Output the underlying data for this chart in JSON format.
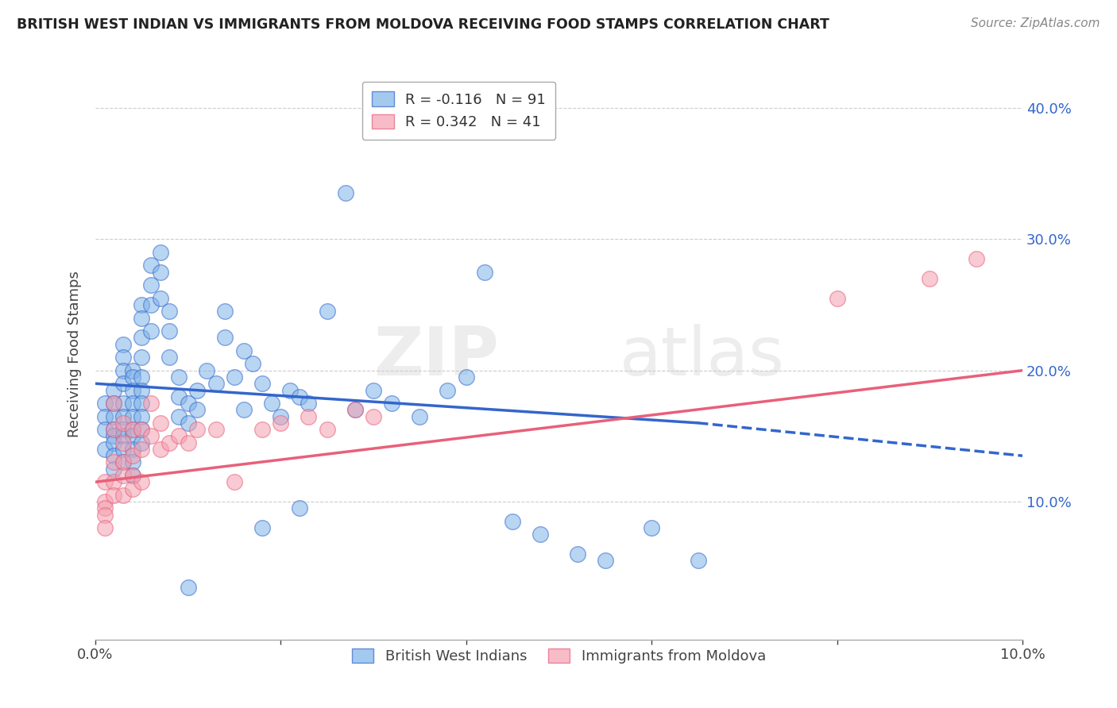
{
  "title": "BRITISH WEST INDIAN VS IMMIGRANTS FROM MOLDOVA RECEIVING FOOD STAMPS CORRELATION CHART",
  "source": "Source: ZipAtlas.com",
  "ylabel": "Receiving Food Stamps",
  "ytick_labels": [
    "10.0%",
    "20.0%",
    "30.0%",
    "40.0%"
  ],
  "ytick_values": [
    0.1,
    0.2,
    0.3,
    0.4
  ],
  "xlim": [
    0.0,
    0.1
  ],
  "ylim": [
    -0.005,
    0.43
  ],
  "legend_blue_r": "-0.116",
  "legend_blue_n": "91",
  "legend_pink_r": "0.342",
  "legend_pink_n": "41",
  "blue_color": "#7EB3E8",
  "pink_color": "#F4A0B0",
  "blue_line_color": "#3366CC",
  "pink_line_color": "#E8607A",
  "blue_line_y0": 0.19,
  "blue_line_y1_solid": 0.16,
  "blue_line_x_solid_end": 0.065,
  "blue_line_y1_dashed": 0.135,
  "pink_line_y0": 0.115,
  "pink_line_y1": 0.2,
  "watermark_text": "ZIPatlas",
  "blue_scatter_x": [
    0.001,
    0.001,
    0.001,
    0.001,
    0.002,
    0.002,
    0.002,
    0.002,
    0.002,
    0.002,
    0.002,
    0.002,
    0.003,
    0.003,
    0.003,
    0.003,
    0.003,
    0.003,
    0.003,
    0.003,
    0.003,
    0.003,
    0.004,
    0.004,
    0.004,
    0.004,
    0.004,
    0.004,
    0.004,
    0.004,
    0.004,
    0.004,
    0.005,
    0.005,
    0.005,
    0.005,
    0.005,
    0.005,
    0.005,
    0.005,
    0.005,
    0.005,
    0.006,
    0.006,
    0.006,
    0.006,
    0.007,
    0.007,
    0.007,
    0.008,
    0.008,
    0.008,
    0.009,
    0.009,
    0.009,
    0.01,
    0.01,
    0.011,
    0.011,
    0.012,
    0.013,
    0.014,
    0.014,
    0.015,
    0.016,
    0.016,
    0.017,
    0.018,
    0.019,
    0.02,
    0.021,
    0.022,
    0.023,
    0.025,
    0.027,
    0.03,
    0.032,
    0.035,
    0.038,
    0.042,
    0.045,
    0.048,
    0.052,
    0.055,
    0.06,
    0.065,
    0.04,
    0.028,
    0.018,
    0.022,
    0.01
  ],
  "blue_scatter_y": [
    0.175,
    0.165,
    0.155,
    0.14,
    0.185,
    0.175,
    0.165,
    0.155,
    0.15,
    0.145,
    0.135,
    0.125,
    0.22,
    0.21,
    0.2,
    0.19,
    0.175,
    0.165,
    0.155,
    0.15,
    0.14,
    0.13,
    0.2,
    0.195,
    0.185,
    0.175,
    0.165,
    0.155,
    0.15,
    0.14,
    0.13,
    0.12,
    0.25,
    0.24,
    0.225,
    0.21,
    0.195,
    0.185,
    0.175,
    0.165,
    0.155,
    0.145,
    0.28,
    0.265,
    0.25,
    0.23,
    0.29,
    0.275,
    0.255,
    0.245,
    0.23,
    0.21,
    0.195,
    0.18,
    0.165,
    0.175,
    0.16,
    0.185,
    0.17,
    0.2,
    0.19,
    0.245,
    0.225,
    0.195,
    0.215,
    0.17,
    0.205,
    0.19,
    0.175,
    0.165,
    0.185,
    0.18,
    0.175,
    0.245,
    0.335,
    0.185,
    0.175,
    0.165,
    0.185,
    0.275,
    0.085,
    0.075,
    0.06,
    0.055,
    0.08,
    0.055,
    0.195,
    0.17,
    0.08,
    0.095,
    0.035
  ],
  "pink_scatter_x": [
    0.001,
    0.001,
    0.001,
    0.001,
    0.001,
    0.002,
    0.002,
    0.002,
    0.002,
    0.002,
    0.003,
    0.003,
    0.003,
    0.003,
    0.003,
    0.004,
    0.004,
    0.004,
    0.004,
    0.005,
    0.005,
    0.005,
    0.006,
    0.006,
    0.007,
    0.007,
    0.008,
    0.009,
    0.01,
    0.011,
    0.013,
    0.015,
    0.018,
    0.02,
    0.023,
    0.025,
    0.028,
    0.03,
    0.08,
    0.09,
    0.095
  ],
  "pink_scatter_y": [
    0.115,
    0.1,
    0.095,
    0.09,
    0.08,
    0.175,
    0.155,
    0.13,
    0.115,
    0.105,
    0.16,
    0.145,
    0.13,
    0.12,
    0.105,
    0.155,
    0.135,
    0.12,
    0.11,
    0.155,
    0.14,
    0.115,
    0.175,
    0.15,
    0.16,
    0.14,
    0.145,
    0.15,
    0.145,
    0.155,
    0.155,
    0.115,
    0.155,
    0.16,
    0.165,
    0.155,
    0.17,
    0.165,
    0.255,
    0.27,
    0.285
  ]
}
